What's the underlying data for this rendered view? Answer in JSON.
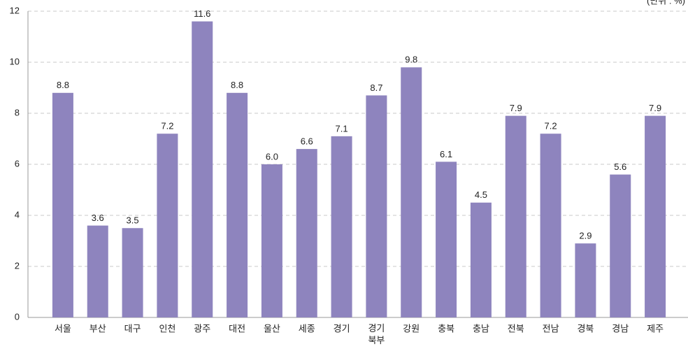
{
  "chart_data": {
    "type": "bar",
    "unit": "(단위 : %)",
    "categories": [
      "서울",
      "부산",
      "대구",
      "인천",
      "광주",
      "대전",
      "울산",
      "세종",
      "경기",
      "경기\n북부",
      "강원",
      "충북",
      "충남",
      "전북",
      "전남",
      "경북",
      "경남",
      "제주"
    ],
    "values": [
      8.8,
      3.6,
      3.5,
      7.2,
      11.6,
      8.8,
      6.0,
      6.6,
      7.1,
      8.7,
      9.8,
      6.1,
      4.5,
      7.9,
      7.2,
      2.9,
      5.6,
      7.9
    ],
    "value_labels": [
      "8.8",
      "3.6",
      "3.5",
      "7.2",
      "11.6",
      "8.8",
      "6.0",
      "6.6",
      "7.1",
      "8.7",
      "9.8",
      "6.1",
      "4.5",
      "7.9",
      "7.2",
      "2.9",
      "5.6",
      "7.9"
    ],
    "color": "#8e84be",
    "ylim": [
      0,
      12
    ],
    "yticks": [
      0,
      2,
      4,
      6,
      8,
      10,
      12
    ],
    "grid": true
  }
}
